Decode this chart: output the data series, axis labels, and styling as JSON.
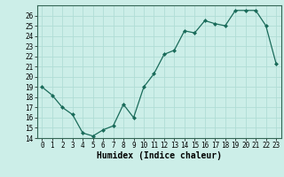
{
  "x": [
    0,
    1,
    2,
    3,
    4,
    5,
    6,
    7,
    8,
    9,
    10,
    11,
    12,
    13,
    14,
    15,
    16,
    17,
    18,
    19,
    20,
    21,
    22,
    23
  ],
  "y": [
    19.0,
    18.2,
    17.0,
    16.3,
    14.5,
    14.2,
    14.8,
    15.2,
    17.3,
    16.0,
    19.0,
    20.3,
    22.2,
    22.6,
    24.5,
    24.3,
    25.5,
    25.2,
    25.0,
    26.5,
    26.5,
    26.5,
    25.0,
    21.3
  ],
  "xlabel": "Humidex (Indice chaleur)",
  "line_color": "#1a6b5a",
  "marker": "D",
  "marker_size": 2.0,
  "bg_color": "#cceee8",
  "grid_color": "#b0ddd6",
  "ylim": [
    14,
    27
  ],
  "yticks": [
    14,
    15,
    16,
    17,
    18,
    19,
    20,
    21,
    22,
    23,
    24,
    25,
    26
  ],
  "xlim": [
    -0.5,
    23.5
  ],
  "xticks": [
    0,
    1,
    2,
    3,
    4,
    5,
    6,
    7,
    8,
    9,
    10,
    11,
    12,
    13,
    14,
    15,
    16,
    17,
    18,
    19,
    20,
    21,
    22,
    23
  ],
  "tick_fontsize": 5.5,
  "xlabel_fontsize": 7.0
}
